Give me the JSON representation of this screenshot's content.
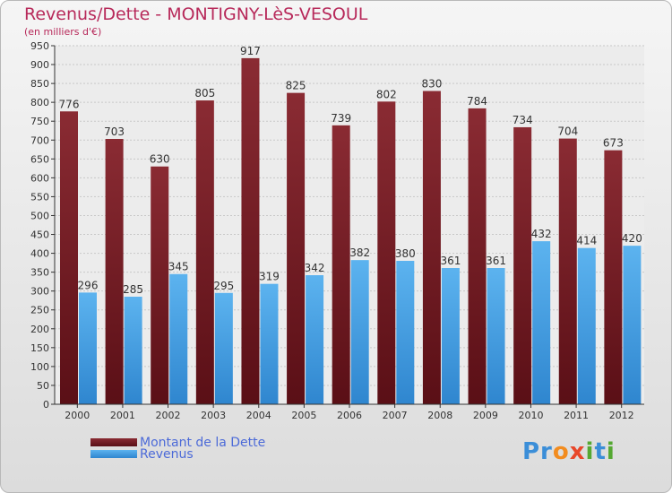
{
  "header": {
    "title": "Revenus/Dette - MONTIGNY-LèS-VESOUL",
    "subtitle": "(en milliers d'€)"
  },
  "legend": {
    "debt_label": "Montant de la Dette",
    "revenue_label": "Revenus"
  },
  "logo": {
    "brand": "Proxiti"
  },
  "colors": {
    "debt_bar": "#7a1f28",
    "revenue_bar": "#45a2e6",
    "title": "#b7295a",
    "legend_text": "#4c6ad8"
  },
  "chart_data": {
    "type": "bar",
    "title": "Revenus/Dette - MONTIGNY-LèS-VESOUL",
    "subtitle": "(en milliers d'€)",
    "categories": [
      "2000",
      "2001",
      "2002",
      "2003",
      "2004",
      "2005",
      "2006",
      "2007",
      "2008",
      "2009",
      "2010",
      "2011",
      "2012"
    ],
    "series": [
      {
        "name": "Montant de la Dette",
        "values": [
          776,
          703,
          630,
          805,
          917,
          825,
          739,
          802,
          830,
          784,
          734,
          704,
          673
        ]
      },
      {
        "name": "Revenus",
        "values": [
          296,
          285,
          345,
          295,
          319,
          342,
          382,
          380,
          361,
          361,
          432,
          414,
          420
        ]
      }
    ],
    "ylim": [
      0,
      950
    ],
    "ytick_step": 50,
    "grid": true,
    "legend_position": "bottom-left"
  }
}
